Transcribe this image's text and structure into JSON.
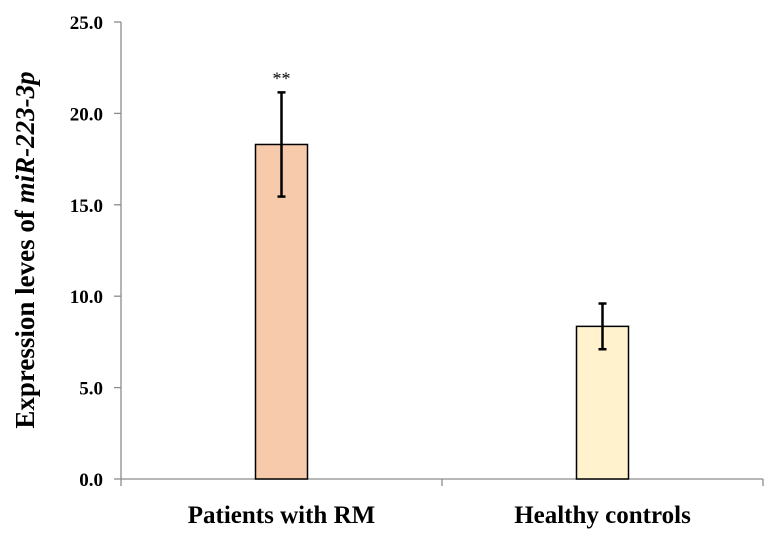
{
  "chart_data": {
    "type": "bar",
    "title": "",
    "xlabel": "",
    "ylabel": "Expression leves of ",
    "ylabel_italic": "miR-223-3p",
    "categories": [
      "Patients with RM",
      "Healthy controls"
    ],
    "values": [
      18.3,
      8.35
    ],
    "errors": [
      2.85,
      1.25
    ],
    "annotations": [
      "**",
      ""
    ],
    "ylim": [
      0,
      25
    ],
    "yticks": [
      "0.0",
      "5.0",
      "10.0",
      "15.0",
      "20.0",
      "25.0"
    ],
    "ytick_values": [
      0,
      5,
      10,
      15,
      20,
      25
    ],
    "colors": [
      "#f7caac",
      "#fff2cc"
    ],
    "grid": false
  }
}
